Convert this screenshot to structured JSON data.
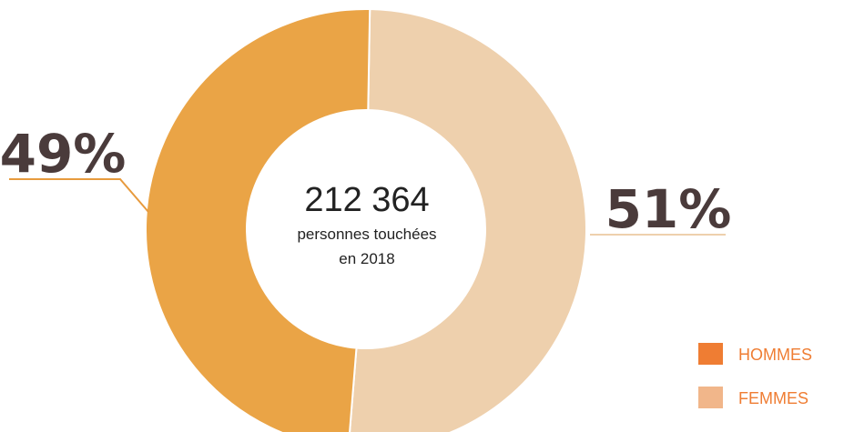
{
  "chart_data": {
    "type": "pie",
    "title": "",
    "center_text": {
      "value": "212 364",
      "line1": "personnes touchées",
      "line2": "en 2018"
    },
    "slices": [
      {
        "label": "HOMMES",
        "value": 49,
        "display": "49%",
        "color": "#eaa446"
      },
      {
        "label": "FEMMES",
        "value": 51,
        "display": "51%",
        "color": "#eed0ad"
      }
    ],
    "legend": {
      "placement": "bottom-right",
      "items": [
        {
          "label": "HOMMES",
          "color": "#ef7d33"
        },
        {
          "label": "FEMMES",
          "color": "#f1b68a"
        }
      ]
    },
    "callout_line_colors": {
      "HOMMES": "#e79a3d",
      "FEMMES": "#eed0ad"
    }
  }
}
